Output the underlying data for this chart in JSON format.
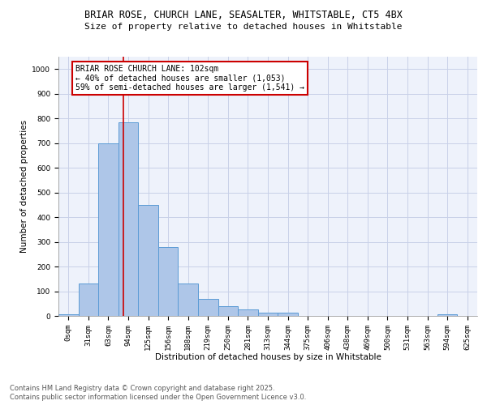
{
  "title_line1": "BRIAR ROSE, CHURCH LANE, SEASALTER, WHITSTABLE, CT5 4BX",
  "title_line2": "Size of property relative to detached houses in Whitstable",
  "xlabel": "Distribution of detached houses by size in Whitstable",
  "ylabel": "Number of detached properties",
  "bar_values": [
    5,
    130,
    700,
    785,
    450,
    280,
    130,
    70,
    40,
    25,
    12,
    12,
    0,
    0,
    0,
    0,
    0,
    0,
    0,
    8,
    0
  ],
  "bar_labels": [
    "0sqm",
    "31sqm",
    "63sqm",
    "94sqm",
    "125sqm",
    "156sqm",
    "188sqm",
    "219sqm",
    "250sqm",
    "281sqm",
    "313sqm",
    "344sqm",
    "375sqm",
    "406sqm",
    "438sqm",
    "469sqm",
    "500sqm",
    "531sqm",
    "563sqm",
    "594sqm",
    "625sqm"
  ],
  "bar_color": "#aec6e8",
  "bar_edge_color": "#5b9bd5",
  "bg_color": "#eef2fb",
  "grid_color": "#c8d0e8",
  "annotation_box_color": "#cc0000",
  "property_value": 102,
  "annotation_text_line1": "BRIAR ROSE CHURCH LANE: 102sqm",
  "annotation_text_line2": "← 40% of detached houses are smaller (1,053)",
  "annotation_text_line3": "59% of semi-detached houses are larger (1,541) →",
  "ylim": [
    0,
    1050
  ],
  "yticks": [
    0,
    100,
    200,
    300,
    400,
    500,
    600,
    700,
    800,
    900,
    1000
  ],
  "footer_line1": "Contains HM Land Registry data © Crown copyright and database right 2025.",
  "footer_line2": "Contains public sector information licensed under the Open Government Licence v3.0.",
  "title_fontsize": 8.5,
  "subtitle_fontsize": 8,
  "axis_label_fontsize": 7.5,
  "tick_fontsize": 6.5,
  "annotation_fontsize": 7,
  "footer_fontsize": 6
}
